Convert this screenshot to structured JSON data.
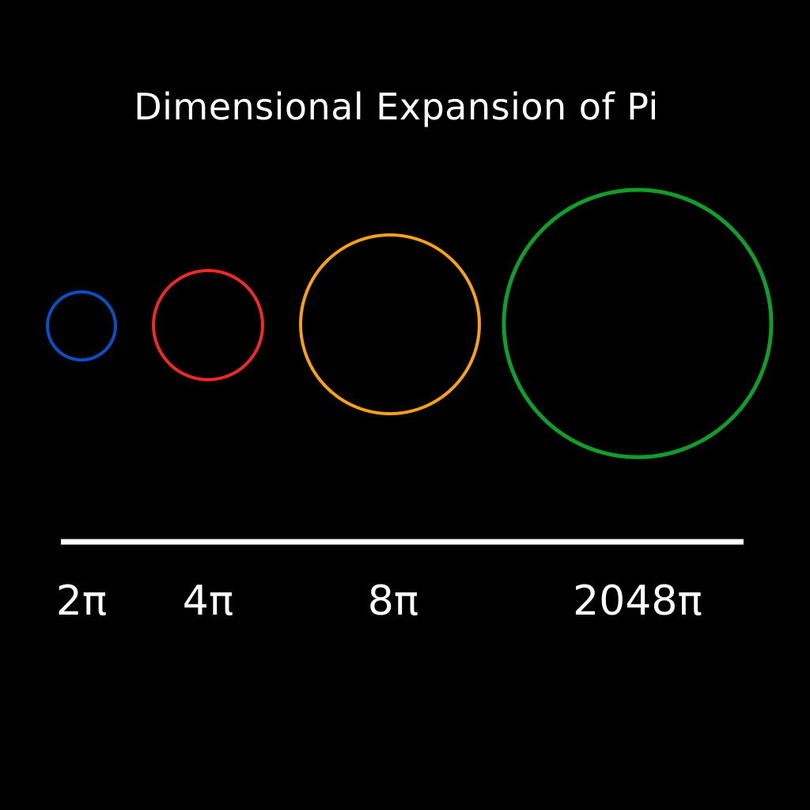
{
  "title": "Dimensional Expansion of Pi",
  "items": [
    {
      "label": "2π",
      "color": "#0a4fc4"
    },
    {
      "label": "4π",
      "color": "#f02828"
    },
    {
      "label": "8π",
      "color": "#f7a018"
    },
    {
      "label": "2048π",
      "color": "#129c2a"
    }
  ],
  "axis_line_color": "#ffffff",
  "background_color": "#000000"
}
